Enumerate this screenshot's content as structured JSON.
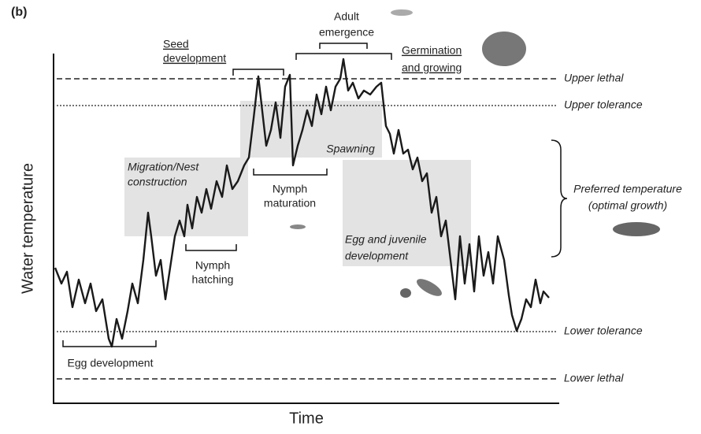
{
  "panel_label": "(b)",
  "axes": {
    "y_label": "Water temperature",
    "x_label": "Time"
  },
  "thresholds": {
    "upper_lethal": "Upper lethal",
    "upper_tolerance": "Upper tolerance",
    "lower_tolerance": "Lower tolerance",
    "lower_lethal": "Lower lethal"
  },
  "preferred": [
    "Preferred temperature",
    "(optimal growth)"
  ],
  "activities": {
    "seed_development": [
      "Seed",
      "development"
    ],
    "adult_emergence": [
      "Adult",
      "emergence"
    ],
    "germination": [
      "Germination",
      "and growing"
    ],
    "migration": [
      "Migration/Nest",
      "construction"
    ],
    "spawning": "Spawning",
    "nymph_maturation": [
      "Nymph",
      "maturation"
    ],
    "nymph_hatching": [
      "Nymph",
      "hatching"
    ],
    "egg_juvenile": [
      "Egg and juvenile",
      "development"
    ],
    "egg_development": "Egg development"
  }
}
